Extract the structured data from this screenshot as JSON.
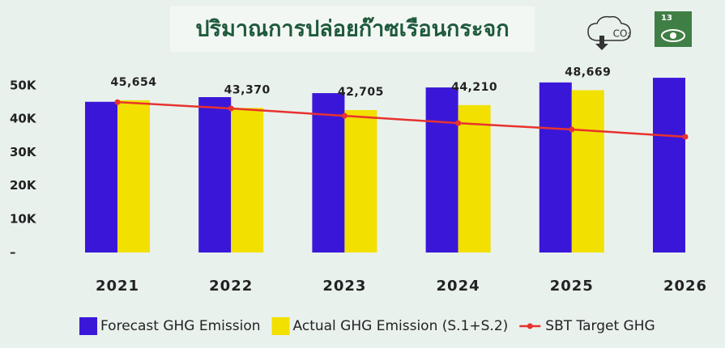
{
  "chart_data": {
    "type": "bar",
    "title": "ปริมาณการปล่อยก๊าซเรือนกระจก",
    "annotations": [
      "CO₂",
      "13"
    ],
    "categories": [
      "2021",
      "2022",
      "2023",
      "2024",
      "2025",
      "2026"
    ],
    "series": [
      {
        "name": "Forecast GHG Emission",
        "color": "#3a17d8",
        "type": "bar",
        "values": [
          45200,
          46600,
          47800,
          49500,
          51000,
          52400
        ]
      },
      {
        "name": "Actual GHG Emission (S.1+S.2)",
        "color": "#f2e000",
        "type": "bar",
        "values": [
          45654,
          43370,
          42705,
          44210,
          48669,
          null
        ],
        "value_labels": [
          "45,654",
          "43,370",
          "42,705",
          "44,210",
          "48,669",
          null
        ]
      },
      {
        "name": "SBT Target GHG",
        "color": "#e8322e",
        "type": "line",
        "values": [
          45100,
          43200,
          41000,
          38800,
          36900,
          34700
        ]
      }
    ],
    "ylim": [
      0,
      55000
    ],
    "yticks": [
      {
        "value": 0,
        "label": "–"
      },
      {
        "value": 10000,
        "label": "10K"
      },
      {
        "value": 20000,
        "label": "20K"
      },
      {
        "value": 30000,
        "label": "30K"
      },
      {
        "value": 40000,
        "label": "40K"
      },
      {
        "value": 50000,
        "label": "50K"
      }
    ],
    "grid": false,
    "legend": "bottom"
  }
}
